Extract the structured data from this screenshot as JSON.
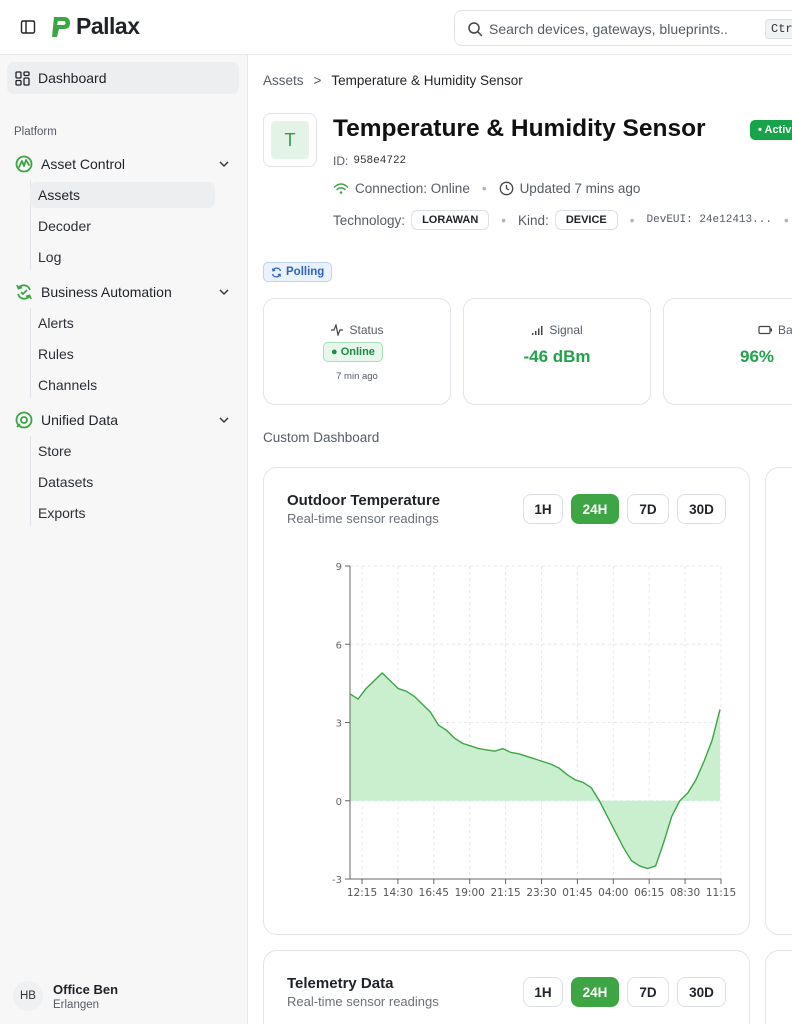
{
  "app": {
    "name": "Pallax",
    "brand_color": "#3da544"
  },
  "search": {
    "placeholder": "Search devices, gateways, blueprints...",
    "shortcut": "Ctrl"
  },
  "sidebar": {
    "dashboard": "Dashboard",
    "section": "Platform",
    "groups": [
      {
        "label": "Asset Control",
        "icon": "asset-control-icon",
        "items": [
          "Assets",
          "Decoder",
          "Log"
        ]
      },
      {
        "label": "Business Automation",
        "icon": "automation-icon",
        "items": [
          "Alerts",
          "Rules",
          "Channels"
        ]
      },
      {
        "label": "Unified Data",
        "icon": "unified-data-icon",
        "items": [
          "Store",
          "Datasets",
          "Exports"
        ]
      }
    ],
    "active_item": "Assets",
    "user": {
      "initials": "HB",
      "name": "Office Ben",
      "location": "Erlangen"
    }
  },
  "breadcrumb": {
    "parent": "Assets",
    "separator": ">",
    "current": "Temperature & Humidity Sensor"
  },
  "device": {
    "avatar_letter": "T",
    "title": "Temperature & Humidity Sensor",
    "status_badge": "• Activ",
    "id_label": "ID:",
    "id": "958e4722",
    "connection": "Connection: Online",
    "updated": "Updated 7 mins ago",
    "technology_label": "Technology:",
    "technology": "LORAWAN",
    "kind_label": "Kind:",
    "kind": "DEVICE",
    "deveui": "DevEUI: 24e12413..."
  },
  "polling": "Polling",
  "stats": {
    "status": {
      "label": "Status",
      "value": "● Online",
      "time": "7 min ago"
    },
    "signal": {
      "label": "Signal",
      "value": "-46 dBm"
    },
    "battery": {
      "label": "Battery",
      "value": "96%"
    }
  },
  "custom_dashboard_label": "Custom Dashboard",
  "ranges": [
    "1H",
    "24H",
    "7D",
    "30D"
  ],
  "selected_range": "24H",
  "cards": [
    {
      "title": "Outdoor Temperature",
      "subtitle": "Real-time sensor readings"
    },
    {
      "title": "Telemetry Data",
      "subtitle": "Real-time sensor readings"
    }
  ],
  "chart_data": {
    "type": "area",
    "title": "Outdoor Temperature",
    "xlabel": "",
    "ylabel": "",
    "ylim": [
      -3,
      9
    ],
    "yticks": [
      -3,
      0,
      3,
      6,
      9
    ],
    "xticks": [
      "12:15",
      "14:30",
      "16:45",
      "19:00",
      "21:15",
      "23:30",
      "01:45",
      "04:00",
      "06:15",
      "08:30",
      "11:15"
    ],
    "grid": true,
    "color": "#3da544",
    "fill": "#c9efcf",
    "series": [
      {
        "x": [
          "12:15",
          "12:45",
          "13:15",
          "13:45",
          "14:15",
          "14:45",
          "15:15",
          "15:45",
          "16:15",
          "16:45",
          "17:15",
          "17:45",
          "18:15",
          "18:45",
          "19:15",
          "19:45",
          "20:15",
          "20:45",
          "21:15",
          "21:45",
          "22:15",
          "22:45",
          "23:15",
          "23:45",
          "00:15",
          "00:45",
          "01:15",
          "01:45",
          "02:15",
          "02:45",
          "03:15",
          "03:45",
          "04:15",
          "04:45",
          "05:15",
          "05:45",
          "06:15",
          "06:45",
          "07:15",
          "07:45",
          "08:15",
          "08:45",
          "09:15",
          "09:45",
          "10:15",
          "10:45",
          "11:15"
        ],
        "values": [
          4.1,
          3.9,
          4.3,
          4.6,
          4.9,
          4.6,
          4.3,
          4.2,
          4.0,
          3.7,
          3.4,
          2.9,
          2.7,
          2.4,
          2.2,
          2.1,
          2.0,
          1.95,
          1.9,
          2.0,
          1.85,
          1.8,
          1.7,
          1.6,
          1.5,
          1.4,
          1.25,
          1.0,
          0.8,
          0.7,
          0.5,
          0.0,
          -0.6,
          -1.2,
          -1.8,
          -2.3,
          -2.5,
          -2.6,
          -2.5,
          -1.6,
          -0.6,
          0.0,
          0.3,
          0.8,
          1.5,
          2.3,
          3.5
        ]
      }
    ]
  }
}
